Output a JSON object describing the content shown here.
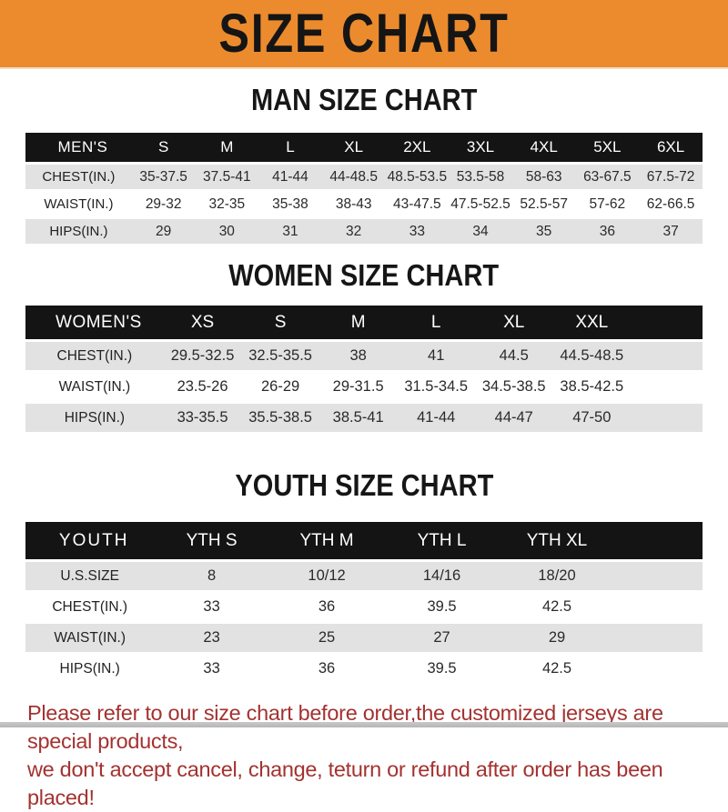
{
  "page": {
    "title": "SIZE CHART",
    "note_line1": "Please refer to our size chart before order,the customized jerseys are special products,",
    "note_line2": "we don't accept cancel, change, teturn or refund after order has been placed!"
  },
  "colors": {
    "banner_orange": "#EC8B2D",
    "header_bar_black": "#141414",
    "row_gray": "#E2E2E2",
    "note_red": "#A33230"
  },
  "sections": [
    {
      "heading": "MAN SIZE CHART",
      "table": {
        "header_label": "MEN'S",
        "columns": [
          "S",
          "M",
          "L",
          "XL",
          "2XL",
          "3XL",
          "4XL",
          "5XL",
          "6XL"
        ],
        "rows": [
          {
            "label": "CHEST(IN.)",
            "values": [
              "35-37.5",
              "37.5-41",
              "41-44",
              "44-48.5",
              "48.5-53.5",
              "53.5-58",
              "58-63",
              "63-67.5",
              "67.5-72"
            ]
          },
          {
            "label": "WAIST(IN.)",
            "values": [
              "29-32",
              "32-35",
              "35-38",
              "38-43",
              "43-47.5",
              "47.5-52.5",
              "52.5-57",
              "57-62",
              "62-66.5"
            ]
          },
          {
            "label": "HIPS(IN.)",
            "values": [
              "29",
              "30",
              "31",
              "32",
              "33",
              "34",
              "35",
              "36",
              "37"
            ]
          }
        ]
      }
    },
    {
      "heading": "WOMEN SIZE CHART",
      "table": {
        "header_label": "WOMEN'S",
        "columns": [
          "XS",
          "S",
          "M",
          "L",
          "XL",
          "XXL"
        ],
        "rows": [
          {
            "label": "CHEST(IN.)",
            "values": [
              "29.5-32.5",
              "32.5-35.5",
              "38",
              "41",
              "44.5",
              "44.5-48.5"
            ]
          },
          {
            "label": "WAIST(IN.)",
            "values": [
              "23.5-26",
              "26-29",
              "29-31.5",
              "31.5-34.5",
              "34.5-38.5",
              "38.5-42.5"
            ]
          },
          {
            "label": "HIPS(IN.)",
            "values": [
              "33-35.5",
              "35.5-38.5",
              "38.5-41",
              "41-44",
              "44-47",
              "47-50"
            ]
          }
        ]
      }
    },
    {
      "heading": "YOUTH SIZE CHART",
      "table": {
        "header_label": "YOUTH",
        "columns": [
          "YTH S",
          "YTH M",
          "YTH L",
          "YTH XL"
        ],
        "rows": [
          {
            "label": "U.S.SIZE",
            "values": [
              "8",
              "10/12",
              "14/16",
              "18/20"
            ]
          },
          {
            "label": "CHEST(IN.)",
            "values": [
              "33",
              "36",
              "39.5",
              "42.5"
            ]
          },
          {
            "label": "WAIST(IN.)",
            "values": [
              "23",
              "25",
              "27",
              "29"
            ]
          },
          {
            "label": "HIPS(IN.)",
            "values": [
              "33",
              "36",
              "39.5",
              "42.5"
            ]
          }
        ]
      }
    }
  ]
}
